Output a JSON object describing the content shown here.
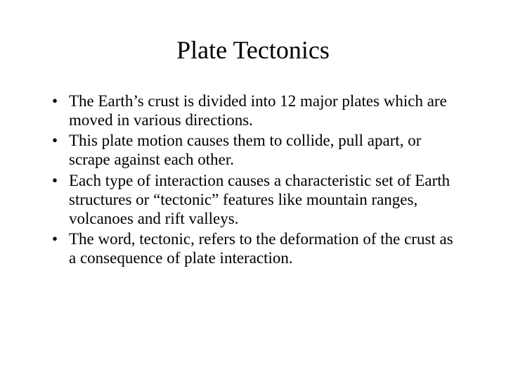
{
  "slide": {
    "title": "Plate Tectonics",
    "title_fontsize": 36,
    "body_fontsize": 23,
    "line_height": 1.18,
    "background_color": "#ffffff",
    "text_color": "#000000",
    "font_family": "Times New Roman",
    "bullets": [
      "The Earth’s crust is divided into 12 major plates which are moved in various directions.",
      "This plate motion causes them to collide, pull apart, or scrape against each other.",
      "Each type of interaction causes a characteristic set of Earth structures or “tectonic” features like mountain ranges, volcanoes and rift valleys.",
      "The word, tectonic, refers to the deformation of the crust as a consequence of plate interaction."
    ]
  }
}
